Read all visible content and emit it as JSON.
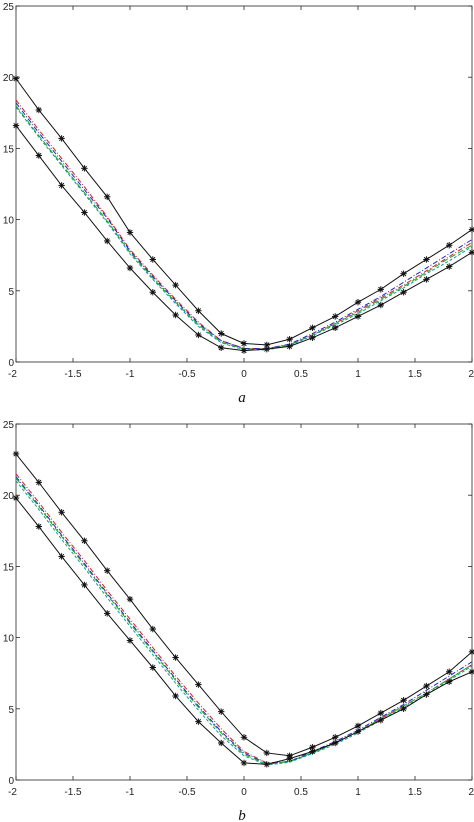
{
  "chart_data": [
    {
      "type": "line",
      "panel_label": "a",
      "xlim": [
        -2,
        2
      ],
      "ylim": [
        0,
        25
      ],
      "xticks": [
        -2,
        -1.5,
        -1,
        -0.5,
        0,
        0.5,
        1,
        1.5,
        2
      ],
      "yticks": [
        0,
        5,
        10,
        15,
        20,
        25
      ],
      "xtick_labels": [
        "-2",
        "-1.5",
        "-1",
        "-0.5",
        "0",
        "0.5",
        "1",
        "1.5",
        "2"
      ],
      "ytick_labels": [
        "0",
        "5",
        "10",
        "15",
        "20",
        "25"
      ],
      "grid": false,
      "x": [
        -2,
        -1.8,
        -1.6,
        -1.4,
        -1.2,
        -1,
        -0.8,
        -0.6,
        -0.4,
        -0.2,
        0,
        0.2,
        0.4,
        0.6,
        0.8,
        1,
        1.2,
        1.4,
        1.6,
        1.8,
        2
      ],
      "series": [
        {
          "style": "upper",
          "color": "#111111",
          "dash": "",
          "markers": true,
          "values": [
            19.9,
            17.7,
            15.7,
            13.6,
            11.6,
            9.1,
            7.2,
            5.4,
            3.6,
            2.0,
            1.3,
            1.2,
            1.6,
            2.4,
            3.2,
            4.2,
            5.1,
            6.2,
            7.2,
            8.2,
            9.3
          ]
        },
        {
          "style": "dash-dot",
          "color": "#cc2222",
          "dash": "5,2,1,2",
          "markers": false,
          "values": [
            18.4,
            16.3,
            14.3,
            12.3,
            10.2,
            7.9,
            6.1,
            4.4,
            2.8,
            1.5,
            0.95,
            0.95,
            1.2,
            1.9,
            2.7,
            3.6,
            4.5,
            5.4,
            6.4,
            7.4,
            8.4
          ]
        },
        {
          "style": "dash-dot",
          "color": "#2222cc",
          "dash": "5,2,1,2",
          "markers": false,
          "values": [
            18.2,
            16.1,
            14.1,
            12.1,
            10.1,
            7.8,
            6.0,
            4.3,
            2.7,
            1.5,
            0.95,
            0.95,
            1.25,
            2.0,
            2.8,
            3.7,
            4.6,
            5.6,
            6.6,
            7.6,
            8.6
          ]
        },
        {
          "style": "dashed",
          "color": "#22aa22",
          "dash": "6,3",
          "markers": false,
          "values": [
            18.0,
            15.9,
            13.9,
            11.9,
            9.9,
            7.7,
            5.9,
            4.2,
            2.6,
            1.4,
            0.9,
            0.9,
            1.2,
            1.9,
            2.7,
            3.5,
            4.4,
            5.3,
            6.3,
            7.3,
            8.2
          ]
        },
        {
          "style": "dashed",
          "color": "#119999",
          "dash": "3,2",
          "markers": false,
          "values": [
            17.9,
            15.8,
            13.8,
            11.8,
            9.8,
            7.6,
            5.8,
            4.1,
            2.5,
            1.35,
            0.85,
            0.85,
            1.15,
            1.85,
            2.6,
            3.4,
            4.3,
            5.2,
            6.2,
            7.1,
            8.1
          ]
        },
        {
          "style": "lower",
          "color": "#111111",
          "dash": "",
          "markers": true,
          "values": [
            16.6,
            14.5,
            12.4,
            10.5,
            8.5,
            6.6,
            4.9,
            3.3,
            1.9,
            1.0,
            0.8,
            0.9,
            1.1,
            1.7,
            2.4,
            3.2,
            4.0,
            4.9,
            5.8,
            6.7,
            7.7
          ]
        }
      ]
    },
    {
      "type": "line",
      "panel_label": "b",
      "xlim": [
        -2,
        2
      ],
      "ylim": [
        0,
        25
      ],
      "xticks": [
        -2,
        -1.5,
        -1,
        -0.5,
        0,
        0.5,
        1,
        1.5,
        2
      ],
      "yticks": [
        0,
        5,
        10,
        15,
        20,
        25
      ],
      "xtick_labels": [
        "-2",
        "-1.5",
        "-1",
        "-0.5",
        "0",
        "0.5",
        "1",
        "1.5",
        "2"
      ],
      "ytick_labels": [
        "0",
        "5",
        "10",
        "15",
        "20",
        "25"
      ],
      "grid": false,
      "x": [
        -2,
        -1.8,
        -1.6,
        -1.4,
        -1.2,
        -1,
        -0.8,
        -0.6,
        -0.4,
        -0.2,
        0,
        0.2,
        0.4,
        0.6,
        0.8,
        1,
        1.2,
        1.4,
        1.6,
        1.8,
        2
      ],
      "series": [
        {
          "style": "upper",
          "color": "#111111",
          "dash": "",
          "markers": true,
          "values": [
            22.9,
            20.9,
            18.8,
            16.8,
            14.7,
            12.7,
            10.6,
            8.6,
            6.7,
            4.8,
            3.0,
            1.9,
            1.7,
            2.3,
            3.0,
            3.8,
            4.7,
            5.6,
            6.6,
            7.6,
            9.0
          ]
        },
        {
          "style": "dash-dot",
          "color": "#cc2222",
          "dash": "5,2,1,2",
          "markers": false,
          "values": [
            21.5,
            19.5,
            17.4,
            15.4,
            13.3,
            11.3,
            9.3,
            7.3,
            5.4,
            3.6,
            2.0,
            1.2,
            1.3,
            1.9,
            2.6,
            3.4,
            4.3,
            5.2,
            6.1,
            7.1,
            8.1
          ]
        },
        {
          "style": "dash-dot",
          "color": "#2222cc",
          "dash": "5,2,1,2",
          "markers": false,
          "values": [
            21.3,
            19.3,
            17.2,
            15.2,
            13.1,
            11.1,
            9.1,
            7.1,
            5.2,
            3.4,
            1.9,
            1.15,
            1.3,
            2.0,
            2.7,
            3.5,
            4.4,
            5.3,
            6.3,
            7.3,
            8.3
          ]
        },
        {
          "style": "dashed",
          "color": "#22aa22",
          "dash": "6,3",
          "markers": false,
          "values": [
            21.2,
            19.2,
            17.1,
            15.1,
            13.0,
            11.0,
            9.0,
            7.0,
            5.1,
            3.3,
            1.8,
            1.1,
            1.3,
            1.9,
            2.6,
            3.4,
            4.3,
            5.2,
            6.1,
            7.1,
            8.1
          ]
        },
        {
          "style": "dashed",
          "color": "#119999",
          "dash": "3,2",
          "markers": false,
          "values": [
            21.0,
            19.0,
            16.9,
            14.9,
            12.8,
            10.8,
            8.8,
            6.8,
            4.9,
            3.1,
            1.7,
            1.05,
            1.25,
            1.85,
            2.5,
            3.3,
            4.2,
            5.1,
            6.0,
            7.0,
            8.0
          ]
        },
        {
          "style": "lower",
          "color": "#111111",
          "dash": "",
          "markers": true,
          "values": [
            19.8,
            17.8,
            15.7,
            13.7,
            11.7,
            9.8,
            7.9,
            5.9,
            4.1,
            2.6,
            1.2,
            1.1,
            1.5,
            2.0,
            2.6,
            3.4,
            4.2,
            5.0,
            6.0,
            6.9,
            7.6
          ]
        }
      ]
    }
  ]
}
